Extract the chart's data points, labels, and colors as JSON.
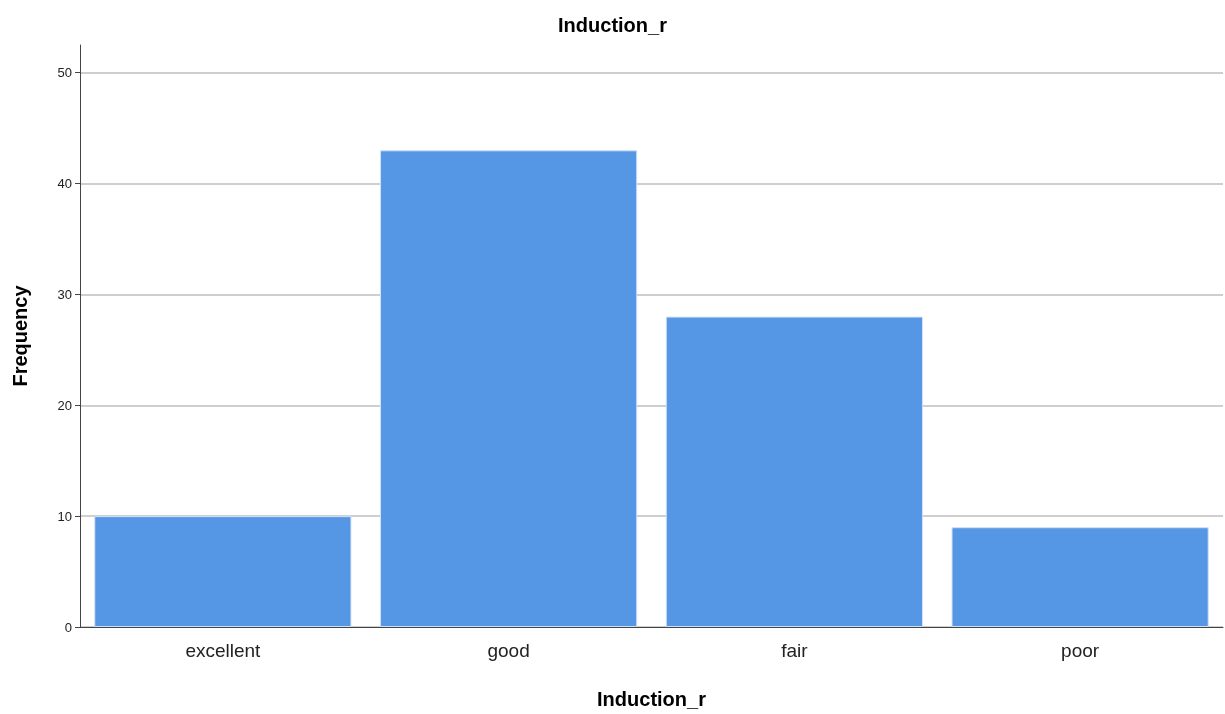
{
  "chart_data": {
    "type": "bar",
    "title": "Induction_r",
    "xlabel": "Induction_r",
    "ylabel": "Frequency",
    "categories": [
      "excellent",
      "good",
      "fair",
      "poor"
    ],
    "series": [
      {
        "color": "#5596e5",
        "values": [
          10,
          43,
          28,
          9
        ]
      }
    ],
    "ylim": [
      0,
      52.5
    ],
    "yticks": [
      0,
      10,
      20,
      30,
      40,
      50
    ],
    "grid": "y"
  }
}
